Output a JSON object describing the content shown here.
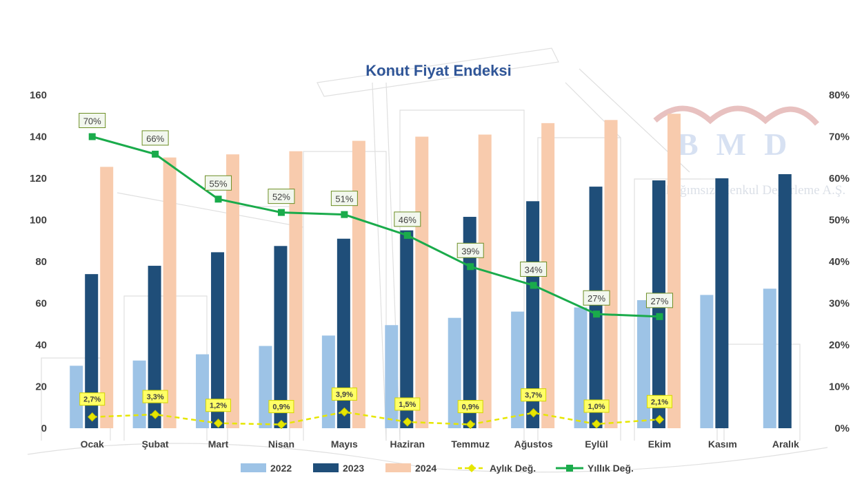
{
  "chart_data": {
    "type": "bar",
    "title": "Konut Fiyat Endeksi",
    "categories": [
      "Ocak",
      "Şubat",
      "Mart",
      "Nisan",
      "Mayıs",
      "Haziran",
      "Temmuz",
      "Ağustos",
      "Eylül",
      "Ekim",
      "Kasım",
      "Aralık"
    ],
    "y_left": {
      "min": 0,
      "max": 160,
      "ticks": [
        "0",
        "20",
        "40",
        "60",
        "80",
        "100",
        "120",
        "140",
        "160"
      ]
    },
    "y_right": {
      "min": 0,
      "max": 80,
      "ticks": [
        "0%",
        "10%",
        "20%",
        "30%",
        "40%",
        "50%",
        "60%",
        "70%",
        "80%"
      ]
    },
    "grid": false,
    "legend_position": "bottom",
    "series": [
      {
        "name": "2022",
        "type": "bar",
        "color": "#9dc3e6",
        "values": [
          30,
          32.5,
          35.5,
          39.5,
          44.5,
          49.5,
          53,
          56,
          58,
          61.5,
          64,
          67
        ]
      },
      {
        "name": "2023",
        "type": "bar",
        "color": "#1f4e79",
        "values": [
          74,
          78,
          84.5,
          87.5,
          91,
          95,
          101.5,
          109,
          116,
          119,
          120,
          122
        ]
      },
      {
        "name": "2024",
        "type": "bar",
        "color": "#f8cbad",
        "values": [
          125.5,
          130,
          131.5,
          133,
          138,
          140,
          141,
          146.5,
          148,
          151,
          null,
          null
        ]
      },
      {
        "name": "Aylık Değ.",
        "type": "line",
        "axis": "right",
        "color": "#e6e600",
        "values": [
          2.7,
          3.3,
          1.2,
          0.9,
          3.9,
          1.5,
          0.9,
          3.7,
          1.0,
          2.1,
          null,
          null
        ],
        "labels": [
          "2,7%",
          "3,3%",
          "1,2%",
          "0,9%",
          "3,9%",
          "1,5%",
          "0,9%",
          "3,7%",
          "1,0%",
          "2,1%",
          "",
          ""
        ]
      },
      {
        "name": "Yıllık Değ.",
        "type": "line",
        "axis": "right",
        "color": "#1aab4b",
        "values": [
          70,
          65.8,
          55,
          51.8,
          51.3,
          46.3,
          38.8,
          34.3,
          27.4,
          26.8,
          null,
          null
        ],
        "labels": [
          "70%",
          "66%",
          "55%",
          "52%",
          "51%",
          "46%",
          "39%",
          "34%",
          "27%",
          "27%",
          "",
          ""
        ]
      }
    ]
  },
  "logo": {
    "text": "BMD",
    "subtitle": "Bağımsız Menkul Değerleme A.Ş."
  }
}
